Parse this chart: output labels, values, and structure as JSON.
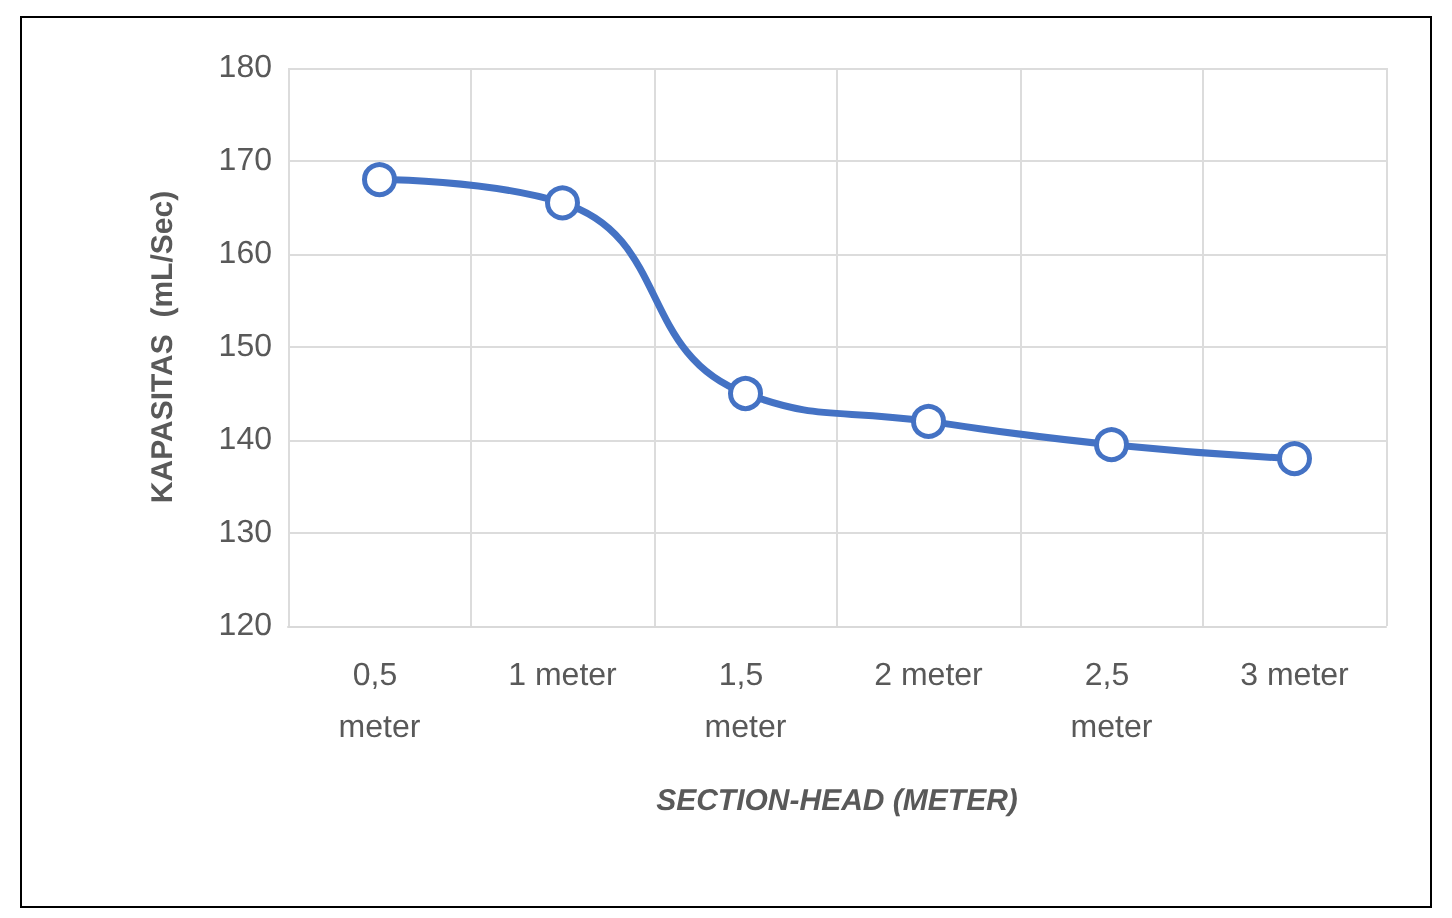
{
  "chart_data": {
    "type": "line",
    "xlabel": "SECTION-HEAD (METER)",
    "ylabel": "KAPASITAS  (mL/Sec)",
    "categories": [
      "0,5 meter",
      "1 meter",
      "1,5 meter",
      "2 meter",
      "2,5 meter",
      "3 meter"
    ],
    "series": [
      {
        "color": "#4472c4",
        "values": [
          168,
          165.5,
          145,
          142,
          139.5,
          138
        ]
      }
    ],
    "ylim": [
      120,
      180
    ],
    "yticks": [
      120,
      130,
      140,
      150,
      160,
      170,
      180
    ],
    "grid": true,
    "marker": "circle",
    "line_style": "solid"
  }
}
